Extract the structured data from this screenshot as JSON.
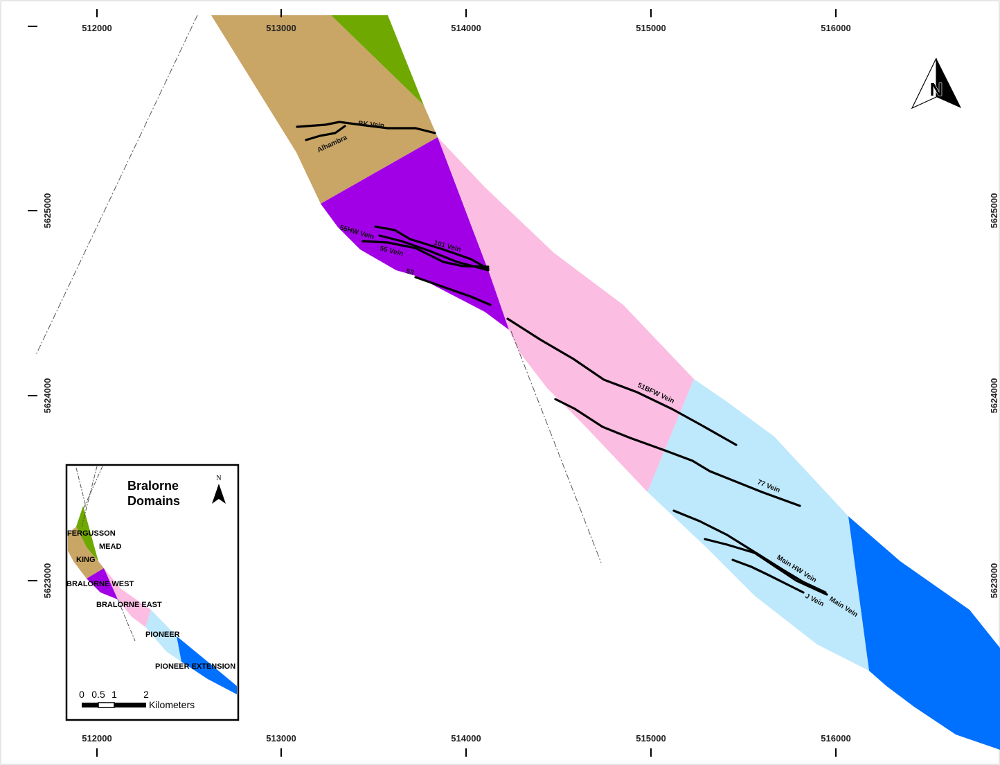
{
  "map": {
    "x_ticks": [
      "512000",
      "513000",
      "514000",
      "515000",
      "516000"
    ],
    "y_ticks": [
      "5625000",
      "5624000",
      "5623000"
    ],
    "north_arrow_label": "N",
    "domain_colors": {
      "fergusson": "#6fa800",
      "king": "#c9a566",
      "bralorne_west": "#a100e6",
      "bralorne_east": "#fbbde2",
      "pioneer": "#bee8fb",
      "pioneer_extension": "#0070ff"
    },
    "veins": {
      "bk": "BK Vein",
      "alhambra": "Alhambra",
      "v55hw": "55HW Vein",
      "v101": "101 Vein",
      "v55": "55 Vein",
      "v53": "53",
      "v51bfw": "51BFW Vein",
      "v77": "77 Vein",
      "mainhw": "Main HW Vein",
      "main": "Main Vein",
      "j": "J Vein"
    }
  },
  "inset": {
    "title_line1": "Bralorne",
    "title_line2": "Domains",
    "north_label": "N",
    "domains": {
      "fergusson": "FERGUSSON",
      "mead": "MEAD",
      "king": "KING",
      "bralorne_west": "BRALORNE WEST",
      "bralorne_east": "BRALORNE EAST",
      "pioneer": "PIONEER",
      "pioneer_extension": "PIONEER EXTENSION"
    },
    "scale": {
      "t0": "0",
      "t05": "0.5",
      "t1": "1",
      "t2": "2",
      "unit": "Kilometers"
    }
  }
}
